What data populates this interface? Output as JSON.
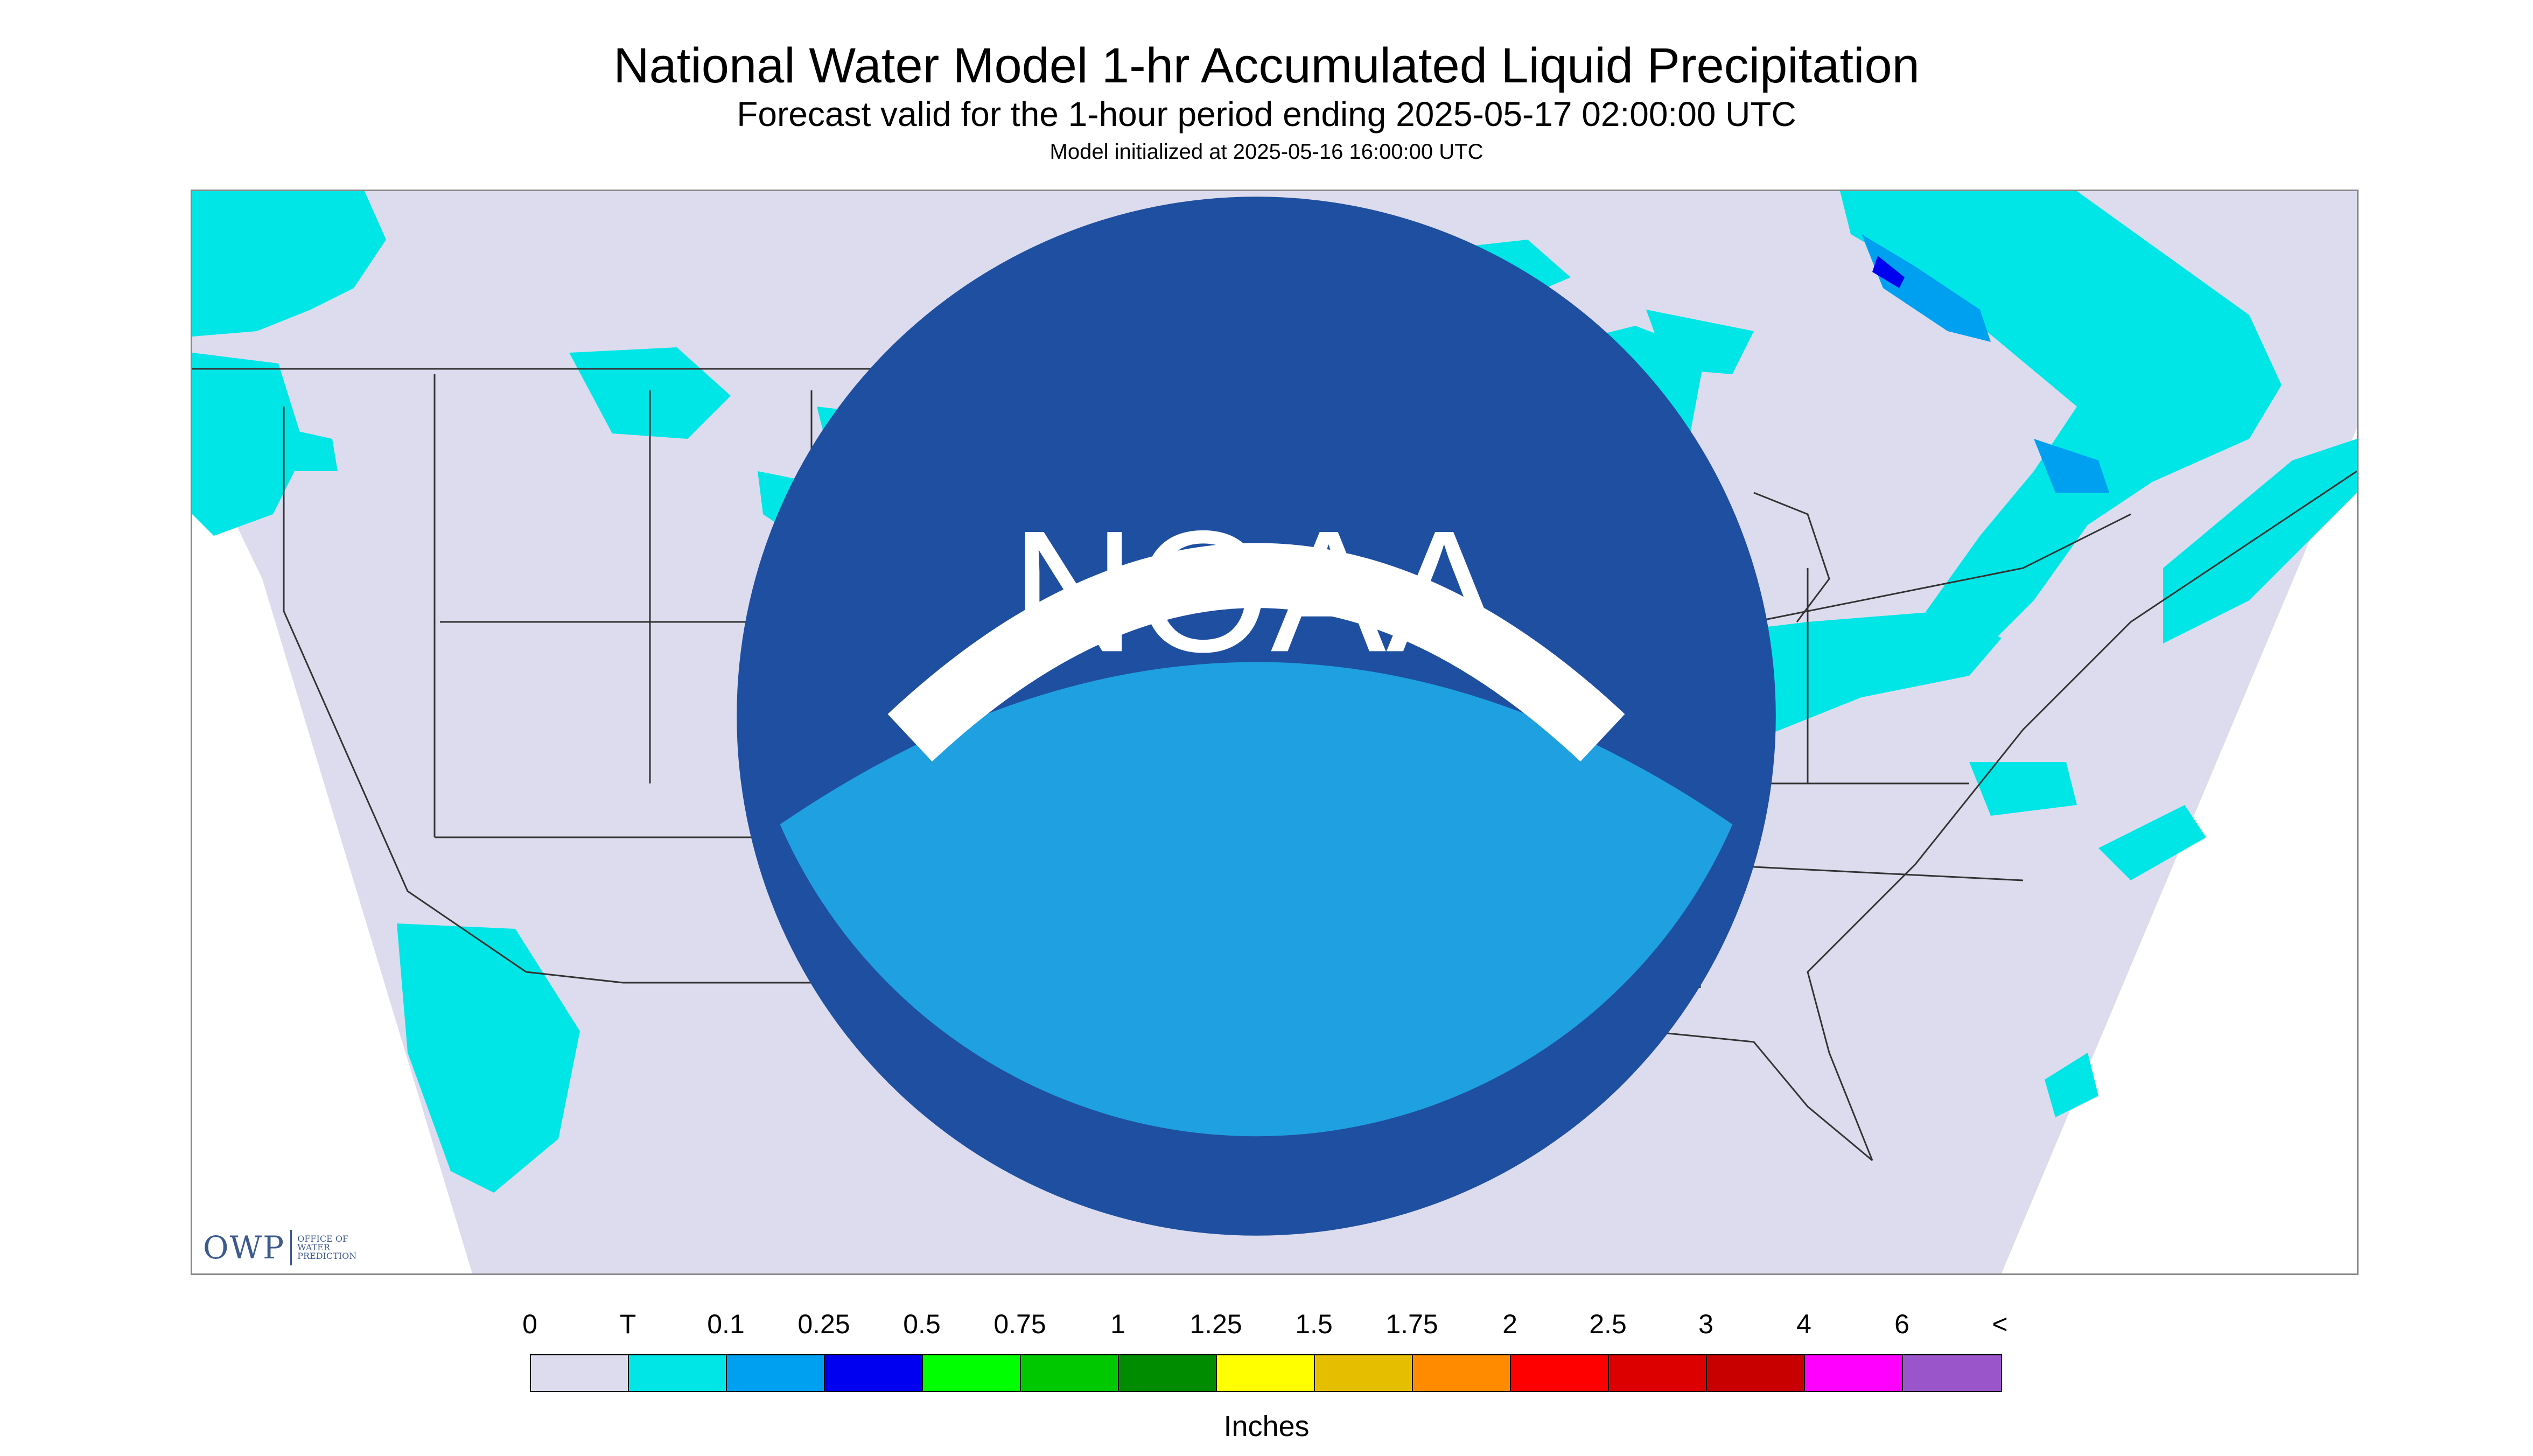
{
  "title": "National Water Model 1-hr Accumulated Liquid Precipitation",
  "subtitle": "Forecast valid for the 1-hour period ending 2025-05-17 02:00:00 UTC",
  "init_text": "Model initialized at 2025-05-16 16:00:00 UTC",
  "logo": {
    "owp_abbrev": "OWP",
    "owp_lines": [
      "OFFICE OF",
      "WATER",
      "PREDICTION"
    ],
    "noaa": "NOAA"
  },
  "colors": {
    "no_precip": "#dcdcee",
    "outside_domain": "#ffffff",
    "border_lines": "#333333"
  },
  "legend": {
    "tick_labels": [
      "0",
      "T",
      "0.1",
      "0.25",
      "0.5",
      "0.75",
      "1",
      "1.25",
      "1.5",
      "1.75",
      "2",
      "2.5",
      "3",
      "4",
      "6",
      "<"
    ],
    "colors": [
      "#dcdcee",
      "#00e6e6",
      "#00a0f0",
      "#0000f0",
      "#00ff00",
      "#00c800",
      "#008c00",
      "#ffff00",
      "#e6be00",
      "#ff8c00",
      "#ff0000",
      "#dc0000",
      "#c80000",
      "#ff00ff",
      "#9955c9"
    ],
    "units": "Inches"
  }
}
